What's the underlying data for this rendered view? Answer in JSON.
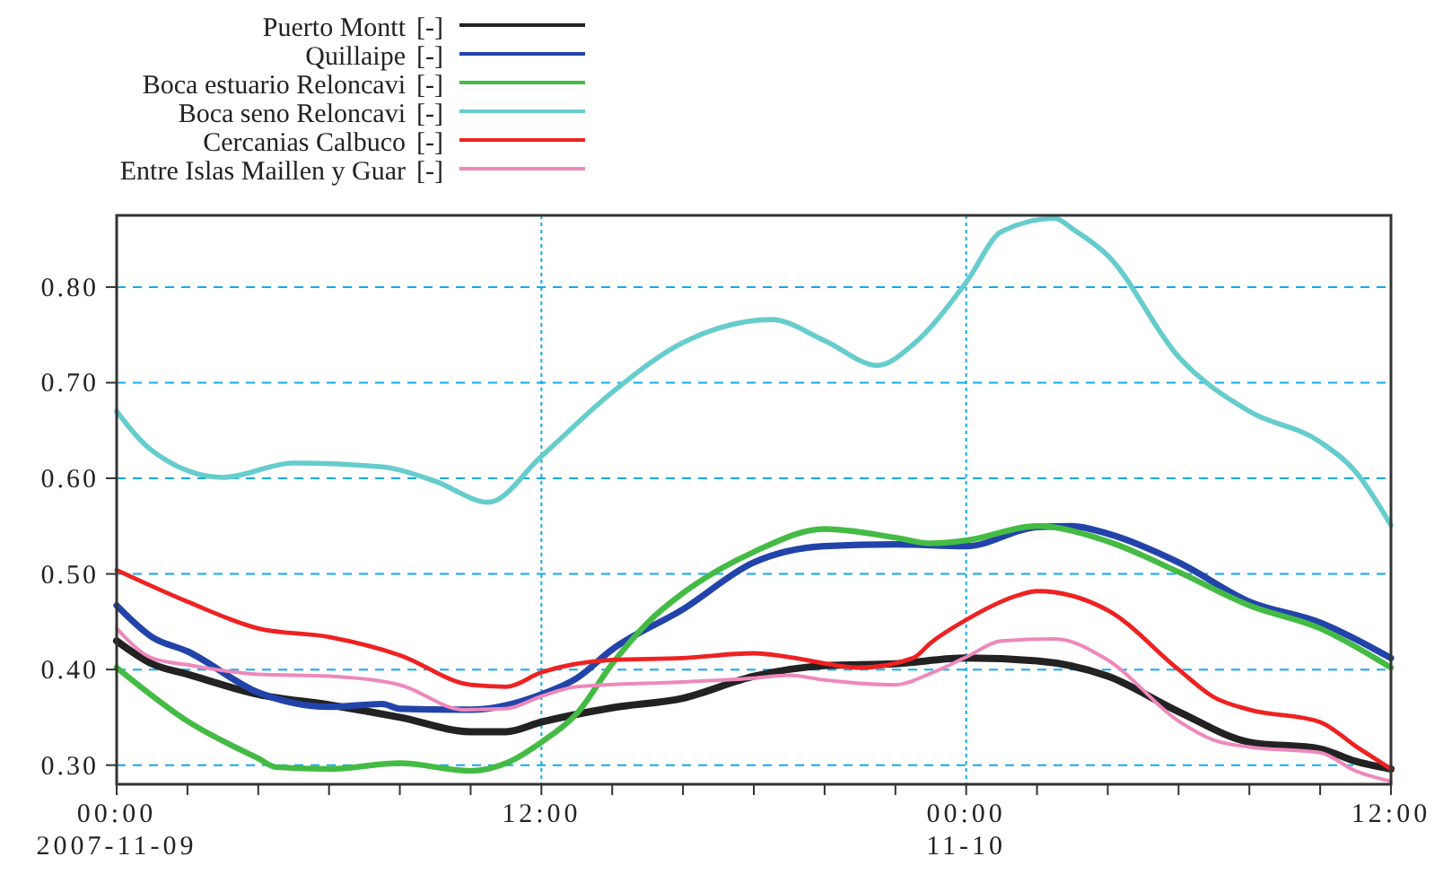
{
  "chart_data": {
    "type": "line",
    "ylabel": "[-]",
    "legend": "top left",
    "grid": true,
    "line_style": "solid",
    "marker": "none",
    "xlim": [
      "2007-11-09T00:00",
      "2007-11-10T12:00"
    ],
    "xticks": [
      {
        "value": "2007-11-09T00:00",
        "label": "00:00\n2007-11-09"
      },
      {
        "value": "2007-11-09T02:00",
        "label": null
      },
      {
        "value": "2007-11-09T04:00",
        "label": null
      },
      {
        "value": "2007-11-09T06:00",
        "label": null
      },
      {
        "value": "2007-11-09T08:00",
        "label": null
      },
      {
        "value": "2007-11-09T10:00",
        "label": null
      },
      {
        "value": "2007-11-09T12:00",
        "label": "12:00"
      },
      {
        "value": "2007-11-09T14:00",
        "label": null
      },
      {
        "value": "2007-11-09T16:00",
        "label": null
      },
      {
        "value": "2007-11-09T18:00",
        "label": null
      },
      {
        "value": "2007-11-09T20:00",
        "label": null
      },
      {
        "value": "2007-11-09T22:00",
        "label": null
      },
      {
        "value": "2007-11-10T00:00",
        "label": "00:00\n11-10"
      },
      {
        "value": "2007-11-10T02:00",
        "label": null
      },
      {
        "value": "2007-11-10T04:00",
        "label": null
      },
      {
        "value": "2007-11-10T06:00",
        "label": null
      },
      {
        "value": "2007-11-10T08:00",
        "label": null
      },
      {
        "value": "2007-11-10T10:00",
        "label": null
      },
      {
        "value": "2007-11-10T12:00",
        "label": "12:00"
      }
    ],
    "ylim": [
      0.28,
      0.875
    ],
    "yticks": [
      {
        "value": 0.3,
        "label": "0.30"
      },
      {
        "value": 0.4,
        "label": "0.40"
      },
      {
        "value": 0.5,
        "label": "0.50"
      },
      {
        "value": 0.6,
        "label": "0.60"
      },
      {
        "value": 0.7,
        "label": "0.70"
      },
      {
        "value": 0.8,
        "label": "0.80"
      }
    ],
    "series": [
      {
        "name": "Puerto Montt",
        "color": "#222222",
        "x": [
          "2007-11-09T00:00",
          "2007-11-09T01:00",
          "2007-11-09T02:00",
          "2007-11-09T04:00",
          "2007-11-09T06:00",
          "2007-11-09T08:00",
          "2007-11-09T10:00",
          "2007-11-09T11:00",
          "2007-11-09T12:00",
          "2007-11-09T14:00",
          "2007-11-09T16:00",
          "2007-11-09T18:00",
          "2007-11-09T20:00",
          "2007-11-09T22:00",
          "2007-11-10T00:00",
          "2007-11-10T02:00",
          "2007-11-10T04:00",
          "2007-11-10T06:00",
          "2007-11-10T08:00",
          "2007-11-10T10:00",
          "2007-11-10T11:00",
          "2007-11-10T12:00"
        ],
        "values": [
          0.43,
          0.406,
          0.395,
          0.374,
          0.363,
          0.35,
          0.335,
          0.335,
          0.345,
          0.36,
          0.37,
          0.393,
          0.404,
          0.406,
          0.412,
          0.409,
          0.393,
          0.356,
          0.324,
          0.317,
          0.304,
          0.296
        ]
      },
      {
        "name": "Quillaipe",
        "color": "#2244aa",
        "x": [
          "2007-11-09T00:00",
          "2007-11-09T01:00",
          "2007-11-09T02:00",
          "2007-11-09T04:00",
          "2007-11-09T06:00",
          "2007-11-09T07:30",
          "2007-11-09T08:00",
          "2007-11-09T10:00",
          "2007-11-09T12:00",
          "2007-11-09T13:00",
          "2007-11-09T14:00",
          "2007-11-09T16:00",
          "2007-11-09T18:00",
          "2007-11-09T20:00",
          "2007-11-09T22:00",
          "2007-11-10T00:00",
          "2007-11-10T02:00",
          "2007-11-10T03:00",
          "2007-11-10T04:00",
          "2007-11-10T06:00",
          "2007-11-10T08:00",
          "2007-11-10T10:00",
          "2007-11-10T12:00"
        ],
        "values": [
          0.467,
          0.434,
          0.419,
          0.376,
          0.361,
          0.364,
          0.359,
          0.358,
          0.374,
          0.391,
          0.421,
          0.463,
          0.512,
          0.529,
          0.531,
          0.529,
          0.549,
          0.55,
          0.542,
          0.512,
          0.471,
          0.449,
          0.412
        ]
      },
      {
        "name": "Boca estuario Reloncavi",
        "color": "#44bb44",
        "x": [
          "2007-11-09T00:00",
          "2007-11-09T02:00",
          "2007-11-09T04:00",
          "2007-11-09T04:30",
          "2007-11-09T06:00",
          "2007-11-09T08:00",
          "2007-11-09T10:00",
          "2007-11-09T11:00",
          "2007-11-09T12:00",
          "2007-11-09T13:00",
          "2007-11-09T14:00",
          "2007-11-09T15:00",
          "2007-11-09T16:00",
          "2007-11-09T17:00",
          "2007-11-09T18:00",
          "2007-11-09T20:00",
          "2007-11-09T22:00",
          "2007-11-09T23:00",
          "2007-11-10T00:00",
          "2007-11-10T02:00",
          "2007-11-10T04:00",
          "2007-11-10T06:00",
          "2007-11-10T08:00",
          "2007-11-10T10:00",
          "2007-11-10T12:00"
        ],
        "values": [
          0.402,
          0.346,
          0.307,
          0.298,
          0.296,
          0.302,
          0.294,
          0.302,
          0.324,
          0.354,
          0.406,
          0.449,
          0.48,
          0.504,
          0.523,
          0.547,
          0.538,
          0.532,
          0.535,
          0.55,
          0.534,
          0.502,
          0.467,
          0.443,
          0.402
        ]
      },
      {
        "name": "Boca seno Reloncavi",
        "color": "#66cccc",
        "x": [
          "2007-11-09T00:00",
          "2007-11-09T01:00",
          "2007-11-09T03:00",
          "2007-11-09T05:00",
          "2007-11-09T07:30",
          "2007-11-09T09:00",
          "2007-11-09T10:30",
          "2007-11-09T12:00",
          "2007-11-09T14:00",
          "2007-11-09T16:00",
          "2007-11-09T17:00",
          "2007-11-09T18:30",
          "2007-11-09T20:00",
          "2007-11-09T21:30",
          "2007-11-09T22:30",
          "2007-11-10T00:00",
          "2007-11-10T01:00",
          "2007-11-10T02:30",
          "2007-11-10T03:00",
          "2007-11-10T04:00",
          "2007-11-10T06:00",
          "2007-11-10T08:00",
          "2007-11-10T10:00",
          "2007-11-10T11:00",
          "2007-11-10T12:00"
        ],
        "values": [
          0.67,
          0.629,
          0.601,
          0.616,
          0.612,
          0.597,
          0.575,
          0.623,
          0.69,
          0.742,
          0.757,
          0.766,
          0.744,
          0.718,
          0.74,
          0.805,
          0.858,
          0.872,
          0.861,
          0.833,
          0.727,
          0.67,
          0.638,
          0.607,
          0.551
        ]
      },
      {
        "name": "Cercanias Calbuco",
        "color": "#ee2222",
        "x": [
          "2007-11-09T00:00",
          "2007-11-09T02:00",
          "2007-11-09T04:00",
          "2007-11-09T06:00",
          "2007-11-09T08:00",
          "2007-11-09T10:00",
          "2007-11-09T11:00",
          "2007-11-09T12:00",
          "2007-11-09T14:00",
          "2007-11-09T16:00",
          "2007-11-09T18:00",
          "2007-11-09T19:00",
          "2007-11-09T21:00",
          "2007-11-09T22:30",
          "2007-11-09T23:00",
          "2007-11-10T00:00",
          "2007-11-10T01:30",
          "2007-11-10T02:00",
          "2007-11-10T04:00",
          "2007-11-10T06:00",
          "2007-11-10T07:00",
          "2007-11-10T08:00",
          "2007-11-10T10:00",
          "2007-11-10T11:00",
          "2007-11-10T12:00"
        ],
        "values": [
          0.504,
          0.471,
          0.443,
          0.434,
          0.415,
          0.384,
          0.382,
          0.397,
          0.41,
          0.412,
          0.417,
          0.413,
          0.402,
          0.412,
          0.428,
          0.452,
          0.478,
          0.482,
          0.462,
          0.4,
          0.371,
          0.358,
          0.345,
          0.32,
          0.296
        ]
      },
      {
        "name": "Entre Islas Maillen y Guar",
        "color": "#ee88bb",
        "x": [
          "2007-11-09T00:00",
          "2007-11-09T01:00",
          "2007-11-09T02:00",
          "2007-11-09T04:00",
          "2007-11-09T06:00",
          "2007-11-09T08:00",
          "2007-11-09T09:48",
          "2007-11-09T11:00",
          "2007-11-09T12:00",
          "2007-11-09T13:00",
          "2007-11-09T16:00",
          "2007-11-09T18:00",
          "2007-11-09T19:00",
          "2007-11-09T20:00",
          "2007-11-09T22:00",
          "2007-11-09T23:00",
          "2007-11-10T00:00",
          "2007-11-10T01:00",
          "2007-11-10T02:30",
          "2007-11-10T04:00",
          "2007-11-10T06:00",
          "2007-11-10T07:00",
          "2007-11-10T08:00",
          "2007-11-10T10:00",
          "2007-11-10T11:00",
          "2007-11-10T12:00"
        ],
        "values": [
          0.443,
          0.412,
          0.405,
          0.395,
          0.393,
          0.384,
          0.358,
          0.359,
          0.372,
          0.382,
          0.387,
          0.391,
          0.394,
          0.389,
          0.384,
          0.396,
          0.413,
          0.43,
          0.432,
          0.41,
          0.346,
          0.326,
          0.319,
          0.313,
          0.294,
          0.283
        ]
      }
    ]
  }
}
